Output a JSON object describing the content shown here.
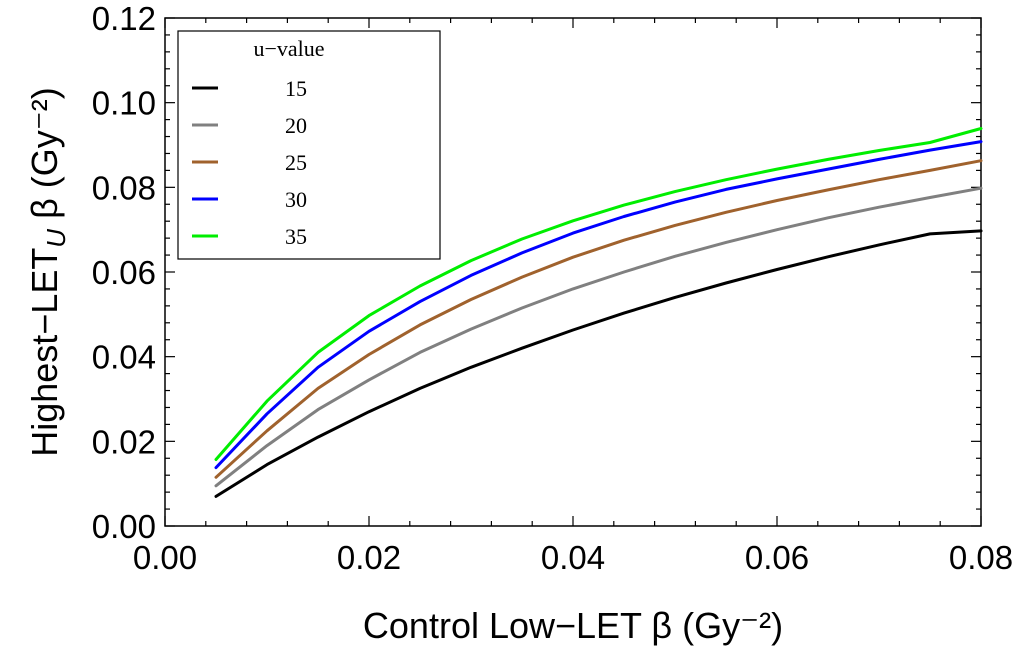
{
  "chart_data": {
    "type": "line",
    "title": "",
    "xlabel": "Control Low−LET β (Gy⁻²)",
    "ylabel": "Highest−LET",
    "ylabel_sub": "U",
    "ylabel_rest": " β (Gy⁻²)",
    "xlim": [
      0.0,
      0.08
    ],
    "ylim": [
      0.0,
      0.12
    ],
    "x_ticks": [
      0.0,
      0.02,
      0.04,
      0.06,
      0.08
    ],
    "x_tick_labels": [
      "0.00",
      "0.02",
      "0.04",
      "0.06",
      "0.08"
    ],
    "y_ticks": [
      0.0,
      0.02,
      0.04,
      0.06,
      0.08,
      0.1,
      0.12
    ],
    "y_tick_labels": [
      "0.00",
      "0.02",
      "0.04",
      "0.06",
      "0.08",
      "0.10",
      "0.12"
    ],
    "x": [
      0.005,
      0.01,
      0.015,
      0.02,
      0.025,
      0.03,
      0.035,
      0.04,
      0.045,
      0.05,
      0.055,
      0.06,
      0.065,
      0.07,
      0.075,
      0.08
    ],
    "legend": {
      "title": "u−value",
      "position": "top-left"
    },
    "series": [
      {
        "name": "15",
        "color": "#000000",
        "values": [
          0.007,
          0.0145,
          0.021,
          0.027,
          0.0325,
          0.0375,
          0.042,
          0.0463,
          0.0503,
          0.054,
          0.0574,
          0.0606,
          0.0636,
          0.0664,
          0.069,
          0.0697
        ]
      },
      {
        "name": "20",
        "color": "#808080",
        "values": [
          0.0095,
          0.019,
          0.0275,
          0.0345,
          0.041,
          0.0465,
          0.0515,
          0.056,
          0.06,
          0.0637,
          0.067,
          0.07,
          0.0728,
          0.0753,
          0.0776,
          0.0798
        ]
      },
      {
        "name": "25",
        "color": "#a0622d",
        "values": [
          0.0115,
          0.0225,
          0.0325,
          0.0405,
          0.0475,
          0.0535,
          0.0588,
          0.0635,
          0.0675,
          0.071,
          0.0741,
          0.0769,
          0.0794,
          0.0818,
          0.084,
          0.0863
        ]
      },
      {
        "name": "30",
        "color": "#0000ff",
        "values": [
          0.0138,
          0.0265,
          0.0375,
          0.046,
          0.053,
          0.0592,
          0.0645,
          0.0692,
          0.0731,
          0.0765,
          0.0795,
          0.082,
          0.0843,
          0.0866,
          0.0888,
          0.0908
        ]
      },
      {
        "name": "35",
        "color": "#00ee00",
        "values": [
          0.0157,
          0.0295,
          0.041,
          0.0497,
          0.0567,
          0.0627,
          0.0678,
          0.0721,
          0.0758,
          0.079,
          0.0818,
          0.0843,
          0.0866,
          0.0887,
          0.0906,
          0.0939
        ]
      }
    ]
  }
}
